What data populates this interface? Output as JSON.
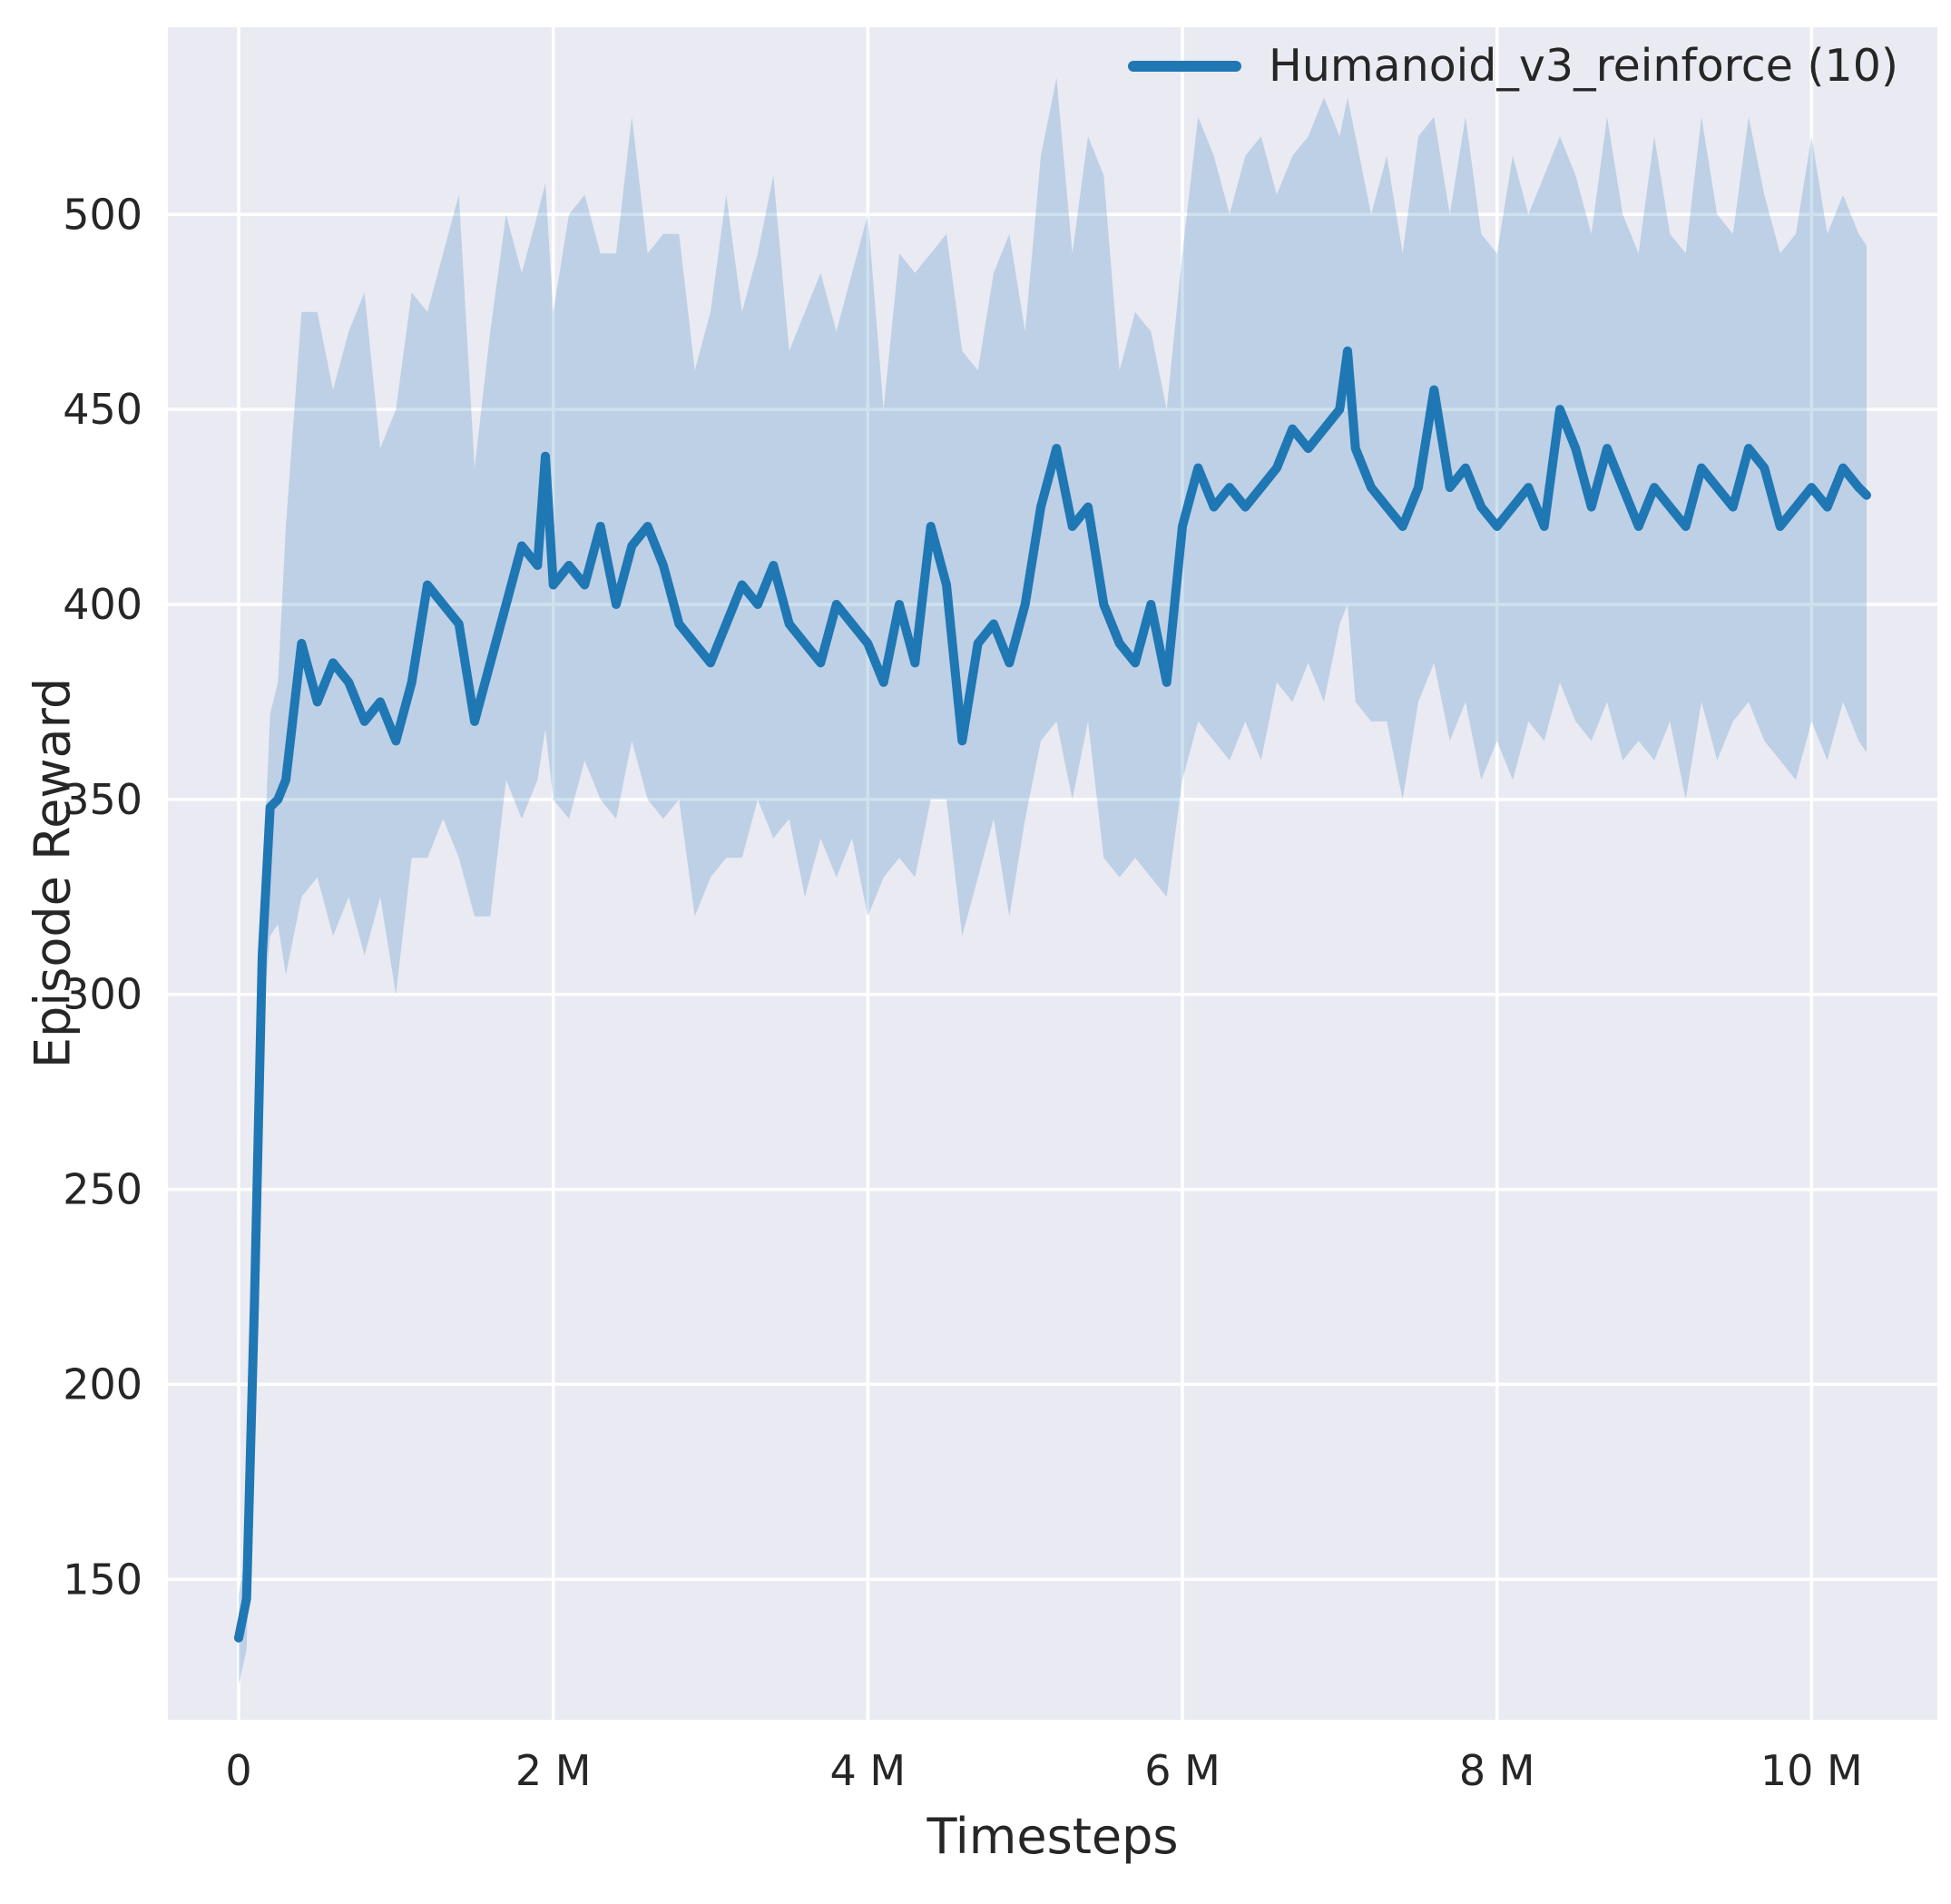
{
  "figure": {
    "background": "#ffffff",
    "axes_background": "#eaeaf2",
    "grid_color": "#ffffff",
    "text_color": "#262626"
  },
  "legend": {
    "label": "Humanoid_v3_reinforce (10)",
    "line_color": "#1f77b4"
  },
  "chart_data": {
    "type": "line",
    "title": "",
    "xlabel": "Timesteps",
    "ylabel": "Episode Reward",
    "x_units": "millions of timesteps",
    "xlim": [
      -0.45,
      10.8
    ],
    "ylim": [
      114,
      548
    ],
    "grid": true,
    "legend_position": "upper right",
    "x_ticks": [
      {
        "v": 0,
        "label": "0"
      },
      {
        "v": 2,
        "label": "2 M"
      },
      {
        "v": 4,
        "label": "4 M"
      },
      {
        "v": 6,
        "label": "6 M"
      },
      {
        "v": 8,
        "label": "8 M"
      },
      {
        "v": 10,
        "label": "10 M"
      }
    ],
    "y_ticks": [
      {
        "v": 150,
        "label": "150"
      },
      {
        "v": 200,
        "label": "200"
      },
      {
        "v": 250,
        "label": "250"
      },
      {
        "v": 300,
        "label": "300"
      },
      {
        "v": 350,
        "label": "350"
      },
      {
        "v": 400,
        "label": "400"
      },
      {
        "v": 450,
        "label": "450"
      },
      {
        "v": 500,
        "label": "500"
      }
    ],
    "series": [
      {
        "name": "Humanoid_v3_reinforce (10)",
        "color": "#1f77b4",
        "band_opacity": 0.22,
        "x": [
          0,
          0.05,
          0.1,
          0.15,
          0.2,
          0.25,
          0.3,
          0.4,
          0.5,
          0.6,
          0.7,
          0.8,
          0.9,
          1.0,
          1.1,
          1.2,
          1.3,
          1.4,
          1.5,
          1.6,
          1.7,
          1.8,
          1.9,
          1.95,
          2.0,
          2.1,
          2.2,
          2.3,
          2.4,
          2.5,
          2.6,
          2.7,
          2.8,
          2.9,
          3.0,
          3.1,
          3.2,
          3.3,
          3.4,
          3.5,
          3.6,
          3.7,
          3.8,
          3.9,
          4.0,
          4.1,
          4.2,
          4.3,
          4.4,
          4.5,
          4.6,
          4.7,
          4.8,
          4.9,
          5.0,
          5.1,
          5.2,
          5.3,
          5.4,
          5.5,
          5.6,
          5.7,
          5.8,
          5.9,
          6.0,
          6.1,
          6.2,
          6.3,
          6.4,
          6.5,
          6.6,
          6.7,
          6.8,
          6.9,
          7.0,
          7.05,
          7.1,
          7.2,
          7.3,
          7.4,
          7.5,
          7.6,
          7.7,
          7.8,
          7.9,
          8.0,
          8.1,
          8.2,
          8.3,
          8.4,
          8.5,
          8.6,
          8.7,
          8.8,
          8.9,
          9.0,
          9.1,
          9.2,
          9.3,
          9.4,
          9.5,
          9.6,
          9.7,
          9.8,
          9.9,
          10.0,
          10.1,
          10.2,
          10.3,
          10.35
        ],
        "mean": [
          135,
          145,
          220,
          310,
          348,
          350,
          355,
          390,
          375,
          385,
          380,
          370,
          375,
          365,
          380,
          405,
          400,
          395,
          370,
          385,
          400,
          415,
          410,
          438,
          405,
          410,
          405,
          420,
          400,
          415,
          420,
          410,
          395,
          390,
          385,
          395,
          405,
          400,
          410,
          395,
          390,
          385,
          400,
          395,
          390,
          380,
          400,
          385,
          420,
          405,
          365,
          390,
          395,
          385,
          400,
          425,
          440,
          420,
          425,
          400,
          390,
          385,
          400,
          380,
          420,
          435,
          425,
          430,
          425,
          430,
          435,
          445,
          440,
          445,
          450,
          465,
          440,
          430,
          425,
          420,
          430,
          455,
          430,
          435,
          425,
          420,
          425,
          430,
          420,
          450,
          440,
          425,
          440,
          430,
          420,
          430,
          425,
          420,
          435,
          430,
          425,
          440,
          435,
          420,
          425,
          430,
          425,
          435,
          430,
          428
        ],
        "low": [
          123,
          132,
          205,
          292,
          315,
          318,
          305,
          325,
          330,
          315,
          325,
          310,
          325,
          300,
          335,
          335,
          345,
          335,
          320,
          320,
          355,
          345,
          355,
          368,
          350,
          345,
          360,
          350,
          345,
          365,
          350,
          345,
          350,
          320,
          330,
          335,
          335,
          350,
          340,
          345,
          325,
          340,
          330,
          340,
          320,
          330,
          335,
          330,
          350,
          350,
          315,
          330,
          345,
          320,
          345,
          365,
          370,
          350,
          370,
          335,
          330,
          335,
          330,
          325,
          355,
          370,
          365,
          360,
          370,
          360,
          380,
          375,
          385,
          375,
          395,
          400,
          375,
          370,
          370,
          350,
          375,
          385,
          365,
          375,
          355,
          365,
          355,
          370,
          365,
          380,
          370,
          365,
          375,
          360,
          365,
          360,
          370,
          350,
          375,
          360,
          370,
          375,
          365,
          360,
          355,
          370,
          360,
          375,
          365,
          362
        ],
        "high": [
          146,
          158,
          235,
          325,
          372,
          380,
          420,
          475,
          475,
          455,
          470,
          480,
          440,
          450,
          480,
          475,
          490,
          505,
          435,
          470,
          500,
          485,
          500,
          508,
          475,
          500,
          505,
          490,
          490,
          525,
          490,
          495,
          495,
          460,
          475,
          505,
          475,
          490,
          510,
          465,
          475,
          485,
          470,
          485,
          500,
          450,
          490,
          485,
          490,
          495,
          465,
          460,
          485,
          495,
          470,
          515,
          535,
          490,
          520,
          510,
          460,
          475,
          470,
          450,
          490,
          525,
          515,
          500,
          515,
          520,
          505,
          515,
          520,
          530,
          520,
          530,
          520,
          500,
          515,
          490,
          520,
          525,
          500,
          525,
          495,
          490,
          515,
          500,
          510,
          520,
          510,
          495,
          525,
          500,
          490,
          520,
          495,
          490,
          525,
          500,
          495,
          525,
          505,
          490,
          495,
          520,
          495,
          505,
          495,
          492
        ]
      }
    ]
  }
}
